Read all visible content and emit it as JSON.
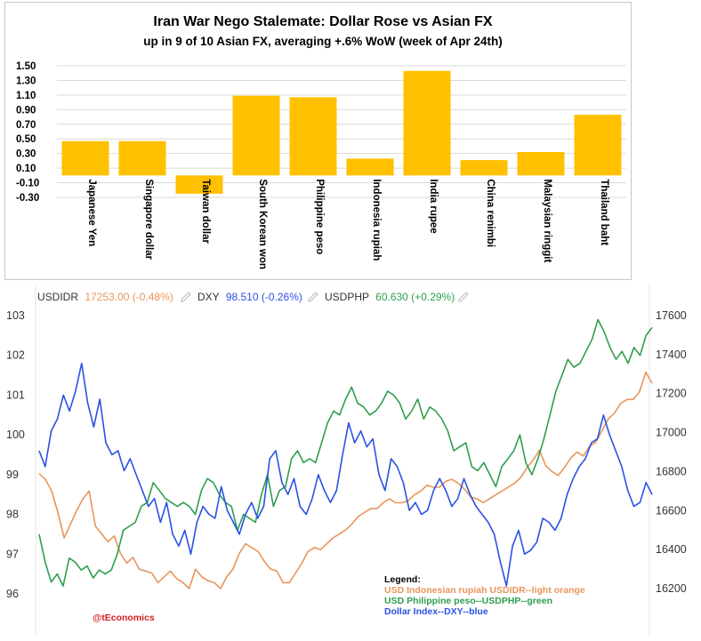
{
  "colors": {
    "bar": "#FFC000",
    "usdidr": "#E8955A",
    "dxy": "#2952E3",
    "usdphp": "#2E9E4F",
    "watermark": "#D21F1F"
  },
  "chart_data": [
    {
      "type": "bar",
      "title": "Iran War Nego Stalemate: Dollar Rose vs Asian FX",
      "subtitle": "up in 9 of 10 Asian FX, averaging +.6% WoW (week of Apr 24th)",
      "categories": [
        "Japanese Yen",
        "Singapore dollar",
        "Taiwan dollar",
        "South Korean won",
        "Philippine peso",
        "Indonesia rupiah",
        "India rupee",
        "China renimbi",
        "Malaysian ringgit",
        "Thailand baht"
      ],
      "values": [
        0.47,
        0.47,
        -0.25,
        1.09,
        1.07,
        0.23,
        1.43,
        0.21,
        0.32,
        0.83
      ],
      "yticks": [
        "1.50",
        "1.30",
        "1.10",
        "0.90",
        "0.70",
        "0.50",
        "0.30",
        "0.10",
        "-0.10",
        "-0.30"
      ],
      "ylim": [
        -0.3,
        1.5
      ],
      "grid": true
    },
    {
      "type": "line",
      "header": [
        {
          "symbol": "USDIDR",
          "value": "17253.00 (-0.48%)"
        },
        {
          "symbol": "DXY",
          "value": "98.510 (-0.26%)"
        },
        {
          "symbol": "USDPHP",
          "value": "60.630 (+0.29%)"
        }
      ],
      "left_axis": {
        "ticks": [
          "103",
          "102",
          "101",
          "100",
          "99",
          "98",
          "97",
          "96"
        ],
        "range": [
          95.5,
          103.2
        ]
      },
      "right_axis": {
        "ticks": [
          "17600",
          "17400",
          "17200",
          "17000",
          "16800",
          "16600",
          "16400",
          "16200"
        ],
        "range": [
          16140,
          17620
        ]
      },
      "legend": {
        "title": "Legend:",
        "items": [
          "USD Indonesian rupiah USDIDR--light orange",
          "USD Philippine peso--USDPHP--green",
          "Dollar Index--DXY--blue"
        ]
      },
      "watermark": "@tEconomics",
      "series": [
        {
          "key": "usdidr",
          "axis": "right",
          "values": [
            16790,
            16760,
            16700,
            16590,
            16460,
            16530,
            16600,
            16660,
            16700,
            16520,
            16480,
            16440,
            16470,
            16380,
            16330,
            16360,
            16300,
            16290,
            16280,
            16230,
            16260,
            16290,
            16250,
            16230,
            16200,
            16300,
            16260,
            16240,
            16230,
            16200,
            16260,
            16300,
            16380,
            16430,
            16410,
            16390,
            16340,
            16300,
            16290,
            16230,
            16230,
            16280,
            16330,
            16390,
            16410,
            16400,
            16430,
            16460,
            16480,
            16500,
            16530,
            16570,
            16590,
            16610,
            16610,
            16640,
            16660,
            16640,
            16640,
            16650,
            16680,
            16700,
            16730,
            16720,
            16720,
            16750,
            16760,
            16740,
            16710,
            16670,
            16660,
            16640,
            16660,
            16680,
            16700,
            16720,
            16740,
            16770,
            16820,
            16860,
            16910,
            16830,
            16800,
            16780,
            16820,
            16870,
            16900,
            16880,
            16930,
            16950,
            17010,
            17070,
            17100,
            17150,
            17170,
            17170,
            17210,
            17310,
            17253
          ]
        },
        {
          "key": "usdphp",
          "axis": "left",
          "values": [
            97.5,
            96.8,
            96.3,
            96.5,
            96.2,
            96.9,
            96.8,
            96.6,
            96.7,
            96.4,
            96.6,
            96.5,
            96.6,
            97.0,
            97.6,
            97.7,
            97.8,
            98.2,
            98.3,
            98.8,
            98.6,
            98.4,
            98.3,
            98.2,
            98.3,
            98.2,
            98.0,
            98.6,
            98.9,
            98.8,
            98.5,
            98.3,
            98.2,
            97.6,
            98.0,
            97.9,
            97.8,
            98.5,
            99.0,
            98.2,
            98.6,
            98.7,
            99.4,
            99.6,
            99.3,
            99.4,
            99.3,
            99.8,
            100.3,
            100.6,
            100.5,
            100.9,
            101.2,
            100.8,
            100.7,
            100.5,
            100.6,
            100.8,
            101.1,
            101.0,
            100.8,
            100.4,
            100.6,
            100.9,
            100.4,
            100.7,
            100.6,
            100.4,
            100.1,
            99.6,
            99.7,
            99.8,
            99.2,
            99.1,
            99.3,
            99.0,
            98.7,
            99.2,
            99.4,
            99.6,
            100.0,
            99.3,
            99.0,
            99.4,
            99.9,
            100.5,
            101.1,
            101.5,
            101.9,
            101.7,
            101.8,
            102.1,
            102.4,
            102.9,
            102.6,
            102.2,
            101.9,
            102.1,
            101.8,
            102.2,
            102.0,
            102.5,
            102.7
          ]
        },
        {
          "key": "dxy",
          "axis": "left",
          "values": [
            99.6,
            99.2,
            100.1,
            100.4,
            101.0,
            100.6,
            101.1,
            101.8,
            100.8,
            100.2,
            100.9,
            99.8,
            99.5,
            99.6,
            99.1,
            99.4,
            99.0,
            98.6,
            98.2,
            98.4,
            97.8,
            98.3,
            97.5,
            97.2,
            97.6,
            97.0,
            97.8,
            98.2,
            98.0,
            97.9,
            98.7,
            98.1,
            97.8,
            97.5,
            98.0,
            98.3,
            97.9,
            98.2,
            99.4,
            99.6,
            98.8,
            98.5,
            98.9,
            98.2,
            98.0,
            98.4,
            99.0,
            98.6,
            98.3,
            98.6,
            99.5,
            100.3,
            99.8,
            100.1,
            99.7,
            99.9,
            99.0,
            98.6,
            99.4,
            99.2,
            98.8,
            98.1,
            98.3,
            98.0,
            98.1,
            98.6,
            98.9,
            98.6,
            98.2,
            98.4,
            98.9,
            98.5,
            98.2,
            98.0,
            97.8,
            97.5,
            96.8,
            96.2,
            97.2,
            97.6,
            97.0,
            97.1,
            97.3,
            97.9,
            97.8,
            97.6,
            97.9,
            98.5,
            98.9,
            99.2,
            99.4,
            99.8,
            99.9,
            100.5,
            100.0,
            99.6,
            99.2,
            98.6,
            98.2,
            98.3,
            98.8,
            98.5
          ]
        }
      ]
    }
  ]
}
